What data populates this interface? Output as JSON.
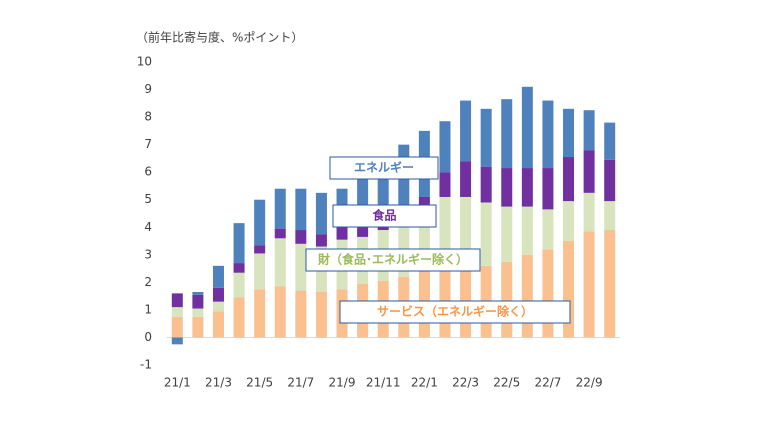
{
  "chart_data": {
    "type": "stacked-bar",
    "title": "（前年比寄与度、%ポイント）",
    "categories": [
      "21/1",
      null,
      "21/3",
      null,
      "21/5",
      null,
      "21/7",
      null,
      "21/9",
      null,
      "21/11",
      null,
      "22/1",
      null,
      "22/3",
      null,
      "22/5",
      null,
      "22/7",
      null,
      "22/9",
      null
    ],
    "series": [
      {
        "name": "サービス（エネルギー除く）",
        "color": "#fac090",
        "label_color": "#f79646",
        "values": [
          0.75,
          0.75,
          0.95,
          1.45,
          1.75,
          1.85,
          1.7,
          1.65,
          1.75,
          1.95,
          2.05,
          2.2,
          2.45,
          2.5,
          2.5,
          2.6,
          2.75,
          3.0,
          3.2,
          3.5,
          3.85,
          3.9
        ]
      },
      {
        "name": "財（食品･エネルギー除く）",
        "color": "#d7e4bd",
        "label_color": "#9bbb59",
        "values": [
          0.35,
          0.3,
          0.35,
          0.9,
          1.3,
          1.75,
          1.7,
          1.65,
          1.8,
          1.7,
          1.85,
          1.9,
          1.8,
          2.6,
          2.6,
          2.3,
          2.0,
          1.75,
          1.45,
          1.45,
          1.4,
          1.05
        ]
      },
      {
        "name": "食品",
        "color": "#7030a0",
        "label_color": "#7030a0",
        "values": [
          0.5,
          0.5,
          0.5,
          0.35,
          0.3,
          0.35,
          0.5,
          0.45,
          0.45,
          0.5,
          0.6,
          0.7,
          0.85,
          0.9,
          1.3,
          1.3,
          1.4,
          1.4,
          1.5,
          1.6,
          1.55,
          1.5
        ]
      },
      {
        "name": "エネルギー",
        "color": "#4f81bd",
        "label_color": "#4f81bd",
        "values": [
          -0.25,
          0.1,
          0.8,
          1.45,
          1.65,
          1.45,
          1.5,
          1.5,
          1.4,
          1.6,
          2.0,
          2.2,
          2.4,
          1.85,
          2.2,
          2.1,
          2.5,
          2.95,
          2.45,
          1.75,
          1.45,
          1.35
        ]
      }
    ],
    "ylim": [
      -1,
      10
    ],
    "yticks": [
      -1,
      0,
      1,
      2,
      3,
      4,
      5,
      6,
      7,
      8,
      9,
      10
    ]
  }
}
